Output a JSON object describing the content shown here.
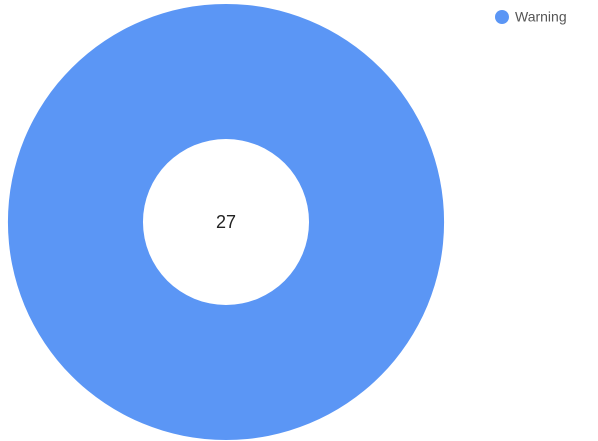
{
  "chart_data": {
    "type": "donut",
    "categories": [
      "Warning"
    ],
    "values": [
      27
    ],
    "colors": [
      "#5b96f5"
    ],
    "legend": "top-right"
  }
}
